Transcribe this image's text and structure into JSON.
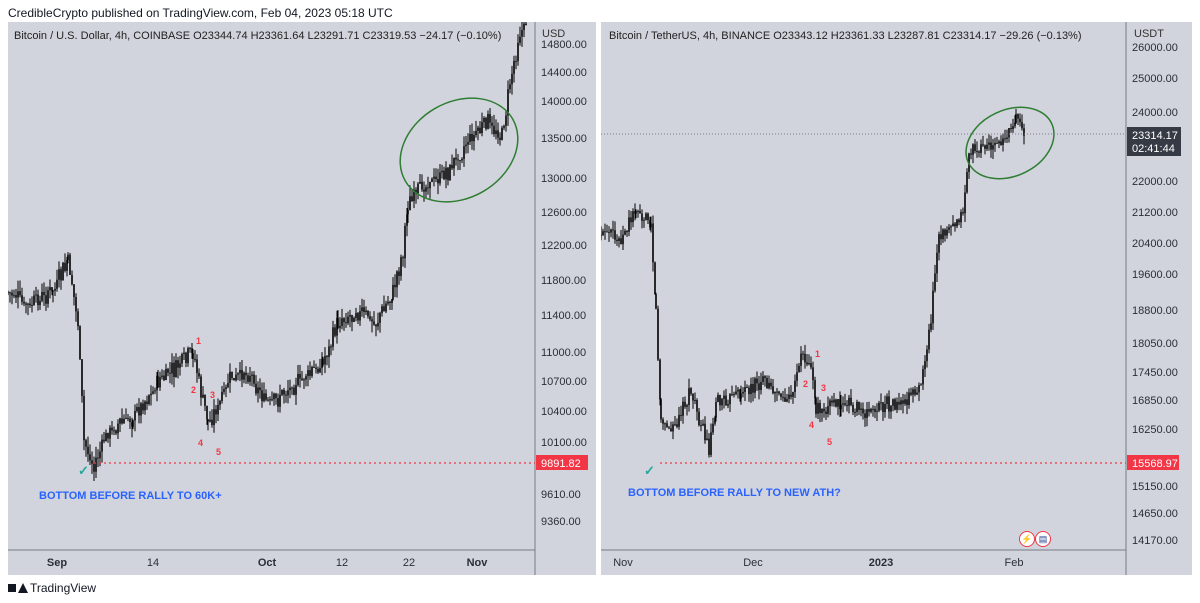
{
  "header": {
    "publisher": "CredibleCrypto published on TradingView.com, Feb 04, 2023 05:18 UTC"
  },
  "footer": {
    "brand": "TradingView"
  },
  "colors": {
    "panel_bg": "#d1d4dc",
    "candle": "#000000",
    "ellipse": "#2e7d32",
    "bottom_line": "#f23645",
    "annotation": "#2962ff",
    "wave_label": "#f23645",
    "check": "#26a69a"
  },
  "chart_data": [
    {
      "type": "candlestick",
      "symbol_line": "Bitcoin / U.S. Dollar, 4h, COINBASE  O23344.74  H23361.64  L23291.71  C23319.53  −24.17 (−0.10%)",
      "unit": "USD",
      "y_ticks": [
        "14800.00",
        "14400.00",
        "14000.00",
        "13500.00",
        "13000.00",
        "12600.00",
        "12200.00",
        "11800.00",
        "11400.00",
        "11000.00",
        "10700.00",
        "10400.00",
        "10100.00",
        "9610.00",
        "9360.00"
      ],
      "x_ticks": [
        {
          "label": "Sep",
          "bold": true
        },
        {
          "label": "14",
          "bold": false
        },
        {
          "label": "Oct",
          "bold": true
        },
        {
          "label": "12",
          "bold": false
        },
        {
          "label": "22",
          "bold": false
        },
        {
          "label": "Nov",
          "bold": true
        }
      ],
      "price_line_label": "9891.82",
      "annotation": "BOTTOM BEFORE RALLY TO 60K+",
      "wave_labels": [
        "1",
        "2",
        "3",
        "4",
        "5"
      ],
      "ylim": [
        9200,
        14900
      ]
    },
    {
      "type": "candlestick",
      "symbol_line": "Bitcoin / TetherUS, 4h, BINANCE  O23343.12  H23361.33  L23287.81  C23314.17  −29.26 (−0.13%)",
      "unit": "USDT",
      "y_ticks": [
        "26000.00",
        "25000.00",
        "24000.00",
        "22000.00",
        "21200.00",
        "20400.00",
        "19600.00",
        "18800.00",
        "18050.00",
        "17450.00",
        "16850.00",
        "16250.00",
        "15150.00",
        "14650.00",
        "14170.00"
      ],
      "x_ticks": [
        {
          "label": "Nov",
          "bold": false
        },
        {
          "label": "Dec",
          "bold": false
        },
        {
          "label": "2023",
          "bold": true
        },
        {
          "label": "Feb",
          "bold": false
        }
      ],
      "last_price": "23314.17",
      "countdown": "02:41:44",
      "price_line_label": "15568.97",
      "annotation": "BOTTOM BEFORE RALLY TO NEW ATH?",
      "wave_labels": [
        "1",
        "2",
        "3",
        "4",
        "5"
      ],
      "ylim": [
        14000,
        26300
      ]
    }
  ]
}
